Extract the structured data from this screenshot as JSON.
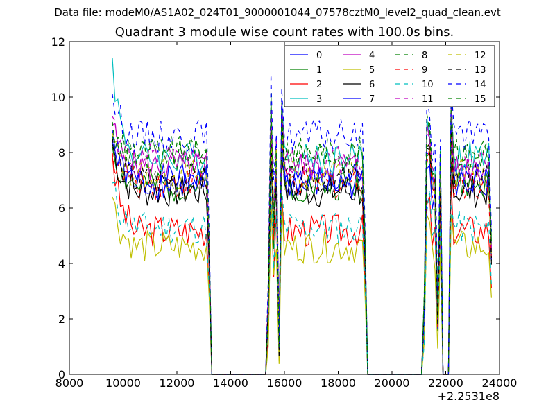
{
  "suptitle": "Data file: modeM0/AS1A02_024T01_9000001044_07578cztM0_level2_quad_clean.evt",
  "chart_data": {
    "type": "line",
    "title": "Quadrant 3 module wise count rates with 100.0s bins.",
    "xlabel": "",
    "ylabel": "",
    "x_offset_label": "+2.2531e8",
    "xlim": [
      8000,
      24000
    ],
    "ylim": [
      0,
      12
    ],
    "x_ticks": [
      8000,
      10000,
      12000,
      14000,
      16000,
      18000,
      20000,
      22000,
      24000
    ],
    "y_ticks": [
      0,
      2,
      4,
      6,
      8,
      10,
      12
    ],
    "grid": false,
    "legend_position": "top-right",
    "legend_columns": 4,
    "bin_width": 100,
    "segments": [
      {
        "x_start": 9600,
        "x_end": 13200
      },
      {
        "x_start": 15400,
        "x_end": 15900
      },
      {
        "x_start": 15900,
        "x_end": 19000
      },
      {
        "x_start": 21200,
        "x_end": 21800
      },
      {
        "x_start": 22200,
        "x_end": 23700
      }
    ],
    "series": [
      {
        "name": "0",
        "color": "#0000ff",
        "dash": "solid",
        "base": 7.0,
        "start_value": 8.4,
        "seed": 1
      },
      {
        "name": "1",
        "color": "#008000",
        "dash": "solid",
        "base": 6.8,
        "start_value": 8.2,
        "seed": 2
      },
      {
        "name": "2",
        "color": "#ff0000",
        "dash": "solid",
        "base": 5.2,
        "start_value": 7.9,
        "seed": 3
      },
      {
        "name": "3",
        "color": "#00bfbf",
        "dash": "solid",
        "base": 7.8,
        "start_value": 11.4,
        "seed": 4
      },
      {
        "name": "4",
        "color": "#bf00bf",
        "dash": "solid",
        "base": 7.5,
        "start_value": 9.0,
        "seed": 5
      },
      {
        "name": "5",
        "color": "#bfbf00",
        "dash": "solid",
        "base": 4.6,
        "start_value": 6.4,
        "seed": 6
      },
      {
        "name": "6",
        "color": "#000000",
        "dash": "solid",
        "base": 6.6,
        "start_value": 8.3,
        "seed": 7
      },
      {
        "name": "7",
        "color": "#0000ff",
        "dash": "solid",
        "base": 6.9,
        "start_value": 8.8,
        "seed": 8
      },
      {
        "name": "8",
        "color": "#008000",
        "dash": "dashed",
        "base": 8.0,
        "start_value": 8.6,
        "seed": 9
      },
      {
        "name": "9",
        "color": "#ff0000",
        "dash": "dashed",
        "base": 6.9,
        "start_value": 8.0,
        "seed": 10
      },
      {
        "name": "10",
        "color": "#00bfbf",
        "dash": "dashed",
        "base": 5.3,
        "start_value": 6.9,
        "seed": 11
      },
      {
        "name": "11",
        "color": "#bf00bf",
        "dash": "dashed",
        "base": 7.7,
        "start_value": 9.3,
        "seed": 12
      },
      {
        "name": "12",
        "color": "#bfbf00",
        "dash": "dashed",
        "base": 7.2,
        "start_value": 8.7,
        "seed": 13
      },
      {
        "name": "13",
        "color": "#000000",
        "dash": "dashed",
        "base": 7.0,
        "start_value": 8.5,
        "seed": 14
      },
      {
        "name": "14",
        "color": "#0000ff",
        "dash": "dashed",
        "base": 8.6,
        "start_value": 10.1,
        "seed": 15
      },
      {
        "name": "15",
        "color": "#008000",
        "dash": "dashed",
        "base": 7.9,
        "start_value": 9.1,
        "seed": 16
      }
    ]
  }
}
